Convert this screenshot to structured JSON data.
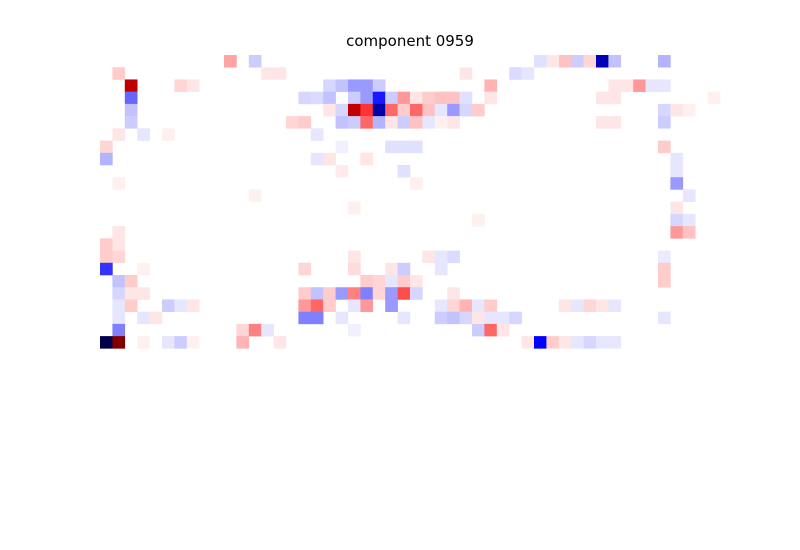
{
  "chart_data": {
    "type": "heatmap",
    "title": "component 0959",
    "rows": 36,
    "cols": 50,
    "colormap": "seismic",
    "vmin": -1,
    "vmax": 1,
    "background_color": "#ffffff",
    "cells": [
      [
        0,
        37,
        0.12
      ],
      [
        0,
        38,
        -0.1
      ],
      [
        0,
        39,
        0.08
      ],
      [
        0,
        10,
        0.18
      ],
      [
        0,
        12,
        -0.1
      ],
      [
        0,
        40,
        -0.7
      ],
      [
        0,
        41,
        -0.12
      ],
      [
        0,
        45,
        -0.15
      ],
      [
        0,
        36,
        0.05
      ],
      [
        0,
        35,
        -0.06
      ],
      [
        1,
        1,
        0.1
      ],
      [
        1,
        13,
        0.05
      ],
      [
        1,
        14,
        0.05
      ],
      [
        1,
        29,
        0.05
      ],
      [
        1,
        33,
        -0.07
      ],
      [
        1,
        34,
        -0.05
      ],
      [
        2,
        2,
        0.75
      ],
      [
        2,
        6,
        0.08
      ],
      [
        2,
        7,
        0.05
      ],
      [
        2,
        18,
        -0.08
      ],
      [
        2,
        19,
        -0.12
      ],
      [
        2,
        20,
        -0.2
      ],
      [
        2,
        21,
        -0.2
      ],
      [
        2,
        22,
        -0.1
      ],
      [
        2,
        31,
        0.15
      ],
      [
        2,
        41,
        0.05
      ],
      [
        2,
        42,
        0.05
      ],
      [
        2,
        43,
        0.2
      ],
      [
        2,
        44,
        -0.05
      ],
      [
        2,
        45,
        -0.05
      ],
      [
        3,
        2,
        -0.3
      ],
      [
        3,
        16,
        -0.08
      ],
      [
        3,
        17,
        -0.07
      ],
      [
        3,
        18,
        -0.12
      ],
      [
        3,
        20,
        -0.1
      ],
      [
        3,
        21,
        -0.2
      ],
      [
        3,
        22,
        -0.45
      ],
      [
        3,
        23,
        -0.1
      ],
      [
        3,
        24,
        0.2
      ],
      [
        3,
        25,
        0.05
      ],
      [
        3,
        26,
        0.1
      ],
      [
        3,
        27,
        0.12
      ],
      [
        3,
        28,
        0.12
      ],
      [
        3,
        29,
        -0.06
      ],
      [
        3,
        31,
        0.05
      ],
      [
        3,
        40,
        0.05
      ],
      [
        3,
        41,
        0.05
      ],
      [
        3,
        49,
        0.03
      ],
      [
        4,
        2,
        -0.12
      ],
      [
        4,
        18,
        0.05
      ],
      [
        4,
        19,
        -0.08
      ],
      [
        4,
        20,
        0.75
      ],
      [
        4,
        21,
        0.4
      ],
      [
        4,
        22,
        -0.75
      ],
      [
        4,
        23,
        0.3
      ],
      [
        4,
        24,
        0.1
      ],
      [
        4,
        25,
        0.3
      ],
      [
        4,
        26,
        0.12
      ],
      [
        4,
        27,
        -0.05
      ],
      [
        4,
        28,
        -0.2
      ],
      [
        4,
        29,
        -0.08
      ],
      [
        4,
        30,
        0.1
      ],
      [
        4,
        45,
        -0.08
      ],
      [
        4,
        46,
        0.05
      ],
      [
        4,
        47,
        0.03
      ],
      [
        5,
        2,
        -0.1
      ],
      [
        5,
        15,
        0.08
      ],
      [
        5,
        16,
        0.1
      ],
      [
        5,
        19,
        -0.12
      ],
      [
        5,
        20,
        -0.1
      ],
      [
        5,
        21,
        0.3
      ],
      [
        5,
        22,
        -0.15
      ],
      [
        5,
        23,
        0.05
      ],
      [
        5,
        24,
        -0.1
      ],
      [
        5,
        25,
        0.12
      ],
      [
        5,
        26,
        -0.05
      ],
      [
        5,
        27,
        0.03
      ],
      [
        5,
        28,
        0.05
      ],
      [
        5,
        40,
        0.05
      ],
      [
        5,
        41,
        0.05
      ],
      [
        5,
        45,
        -0.1
      ],
      [
        6,
        1,
        0.05
      ],
      [
        6,
        3,
        -0.05
      ],
      [
        6,
        5,
        0.03
      ],
      [
        6,
        17,
        -0.05
      ],
      [
        7,
        0,
        0.08
      ],
      [
        7,
        23,
        -0.06
      ],
      [
        7,
        24,
        -0.06
      ],
      [
        7,
        25,
        -0.06
      ],
      [
        7,
        45,
        0.1
      ],
      [
        7,
        19,
        -0.03
      ],
      [
        8,
        0,
        -0.15
      ],
      [
        8,
        18,
        0.05
      ],
      [
        8,
        21,
        0.05
      ],
      [
        8,
        17,
        -0.05
      ],
      [
        8,
        46,
        -0.05
      ],
      [
        9,
        24,
        -0.06
      ],
      [
        9,
        46,
        -0.05
      ],
      [
        9,
        19,
        0.04
      ],
      [
        10,
        46,
        -0.2
      ],
      [
        10,
        1,
        0.03
      ],
      [
        10,
        25,
        0.03
      ],
      [
        11,
        47,
        -0.05
      ],
      [
        11,
        12,
        0.03
      ],
      [
        12,
        20,
        0.03
      ],
      [
        12,
        46,
        0.05
      ],
      [
        13,
        46,
        -0.08
      ],
      [
        13,
        47,
        -0.05
      ],
      [
        13,
        30,
        0.03
      ],
      [
        14,
        46,
        0.2
      ],
      [
        14,
        47,
        0.12
      ],
      [
        14,
        1,
        0.05
      ],
      [
        15,
        0,
        0.1
      ],
      [
        15,
        1,
        0.05
      ],
      [
        16,
        0,
        0.1
      ],
      [
        16,
        1,
        0.08
      ],
      [
        16,
        20,
        0.05
      ],
      [
        16,
        26,
        0.05
      ],
      [
        16,
        27,
        -0.05
      ],
      [
        16,
        28,
        -0.07
      ],
      [
        16,
        45,
        -0.04
      ],
      [
        17,
        0,
        -0.4
      ],
      [
        17,
        3,
        0.03
      ],
      [
        17,
        16,
        0.08
      ],
      [
        17,
        20,
        0.07
      ],
      [
        17,
        23,
        0.05
      ],
      [
        17,
        24,
        -0.1
      ],
      [
        17,
        27,
        -0.05
      ],
      [
        17,
        45,
        0.1
      ],
      [
        18,
        1,
        -0.12
      ],
      [
        18,
        2,
        0.1
      ],
      [
        18,
        21,
        0.1
      ],
      [
        18,
        22,
        0.08
      ],
      [
        18,
        23,
        -0.05
      ],
      [
        18,
        24,
        0.1
      ],
      [
        18,
        25,
        0.05
      ],
      [
        18,
        45,
        0.1
      ],
      [
        19,
        1,
        -0.08
      ],
      [
        19,
        2,
        0.05
      ],
      [
        19,
        3,
        0.05
      ],
      [
        19,
        16,
        0.1
      ],
      [
        19,
        17,
        -0.12
      ],
      [
        19,
        18,
        0.1
      ],
      [
        19,
        19,
        -0.2
      ],
      [
        19,
        20,
        0.25
      ],
      [
        19,
        21,
        -0.25
      ],
      [
        19,
        22,
        0.08
      ],
      [
        19,
        23,
        -0.2
      ],
      [
        19,
        24,
        0.35
      ],
      [
        19,
        25,
        -0.08
      ],
      [
        19,
        28,
        0.05
      ],
      [
        20,
        1,
        -0.05
      ],
      [
        20,
        2,
        0.1
      ],
      [
        20,
        5,
        -0.1
      ],
      [
        20,
        6,
        -0.05
      ],
      [
        20,
        7,
        0.05
      ],
      [
        20,
        16,
        0.2
      ],
      [
        20,
        17,
        0.3
      ],
      [
        20,
        18,
        0.1
      ],
      [
        20,
        20,
        -0.05
      ],
      [
        20,
        21,
        0.2
      ],
      [
        20,
        23,
        -0.2
      ],
      [
        20,
        27,
        -0.05
      ],
      [
        20,
        28,
        0.08
      ],
      [
        20,
        29,
        0.15
      ],
      [
        20,
        30,
        -0.05
      ],
      [
        20,
        31,
        0.1
      ],
      [
        20,
        37,
        0.05
      ],
      [
        20,
        38,
        -0.05
      ],
      [
        20,
        39,
        0.08
      ],
      [
        20,
        40,
        0.05
      ],
      [
        20,
        41,
        -0.05
      ],
      [
        21,
        1,
        -0.05
      ],
      [
        21,
        3,
        -0.05
      ],
      [
        21,
        4,
        0.05
      ],
      [
        21,
        16,
        -0.25
      ],
      [
        21,
        17,
        -0.25
      ],
      [
        21,
        19,
        -0.05
      ],
      [
        21,
        24,
        -0.05
      ],
      [
        21,
        27,
        -0.1
      ],
      [
        21,
        28,
        -0.12
      ],
      [
        21,
        29,
        -0.08
      ],
      [
        21,
        30,
        0.05
      ],
      [
        21,
        31,
        -0.05
      ],
      [
        21,
        32,
        -0.05
      ],
      [
        21,
        33,
        -0.08
      ],
      [
        21,
        45,
        -0.05
      ],
      [
        22,
        1,
        -0.25
      ],
      [
        22,
        11,
        0.08
      ],
      [
        22,
        12,
        0.25
      ],
      [
        22,
        13,
        -0.05
      ],
      [
        22,
        20,
        -0.03
      ],
      [
        22,
        30,
        -0.1
      ],
      [
        22,
        31,
        0.3
      ],
      [
        22,
        32,
        0.05
      ],
      [
        23,
        0,
        -1.0
      ],
      [
        23,
        1,
        1.0
      ],
      [
        23,
        3,
        0.03
      ],
      [
        23,
        5,
        -0.05
      ],
      [
        23,
        6,
        -0.1
      ],
      [
        23,
        7,
        0.03
      ],
      [
        23,
        11,
        0.15
      ],
      [
        23,
        14,
        0.05
      ],
      [
        23,
        34,
        0.05
      ],
      [
        23,
        35,
        -0.5
      ],
      [
        23,
        36,
        0.1
      ],
      [
        23,
        37,
        0.05
      ],
      [
        23,
        38,
        -0.05
      ],
      [
        23,
        39,
        -0.08
      ],
      [
        23,
        40,
        -0.05
      ],
      [
        23,
        41,
        -0.05
      ]
    ]
  }
}
